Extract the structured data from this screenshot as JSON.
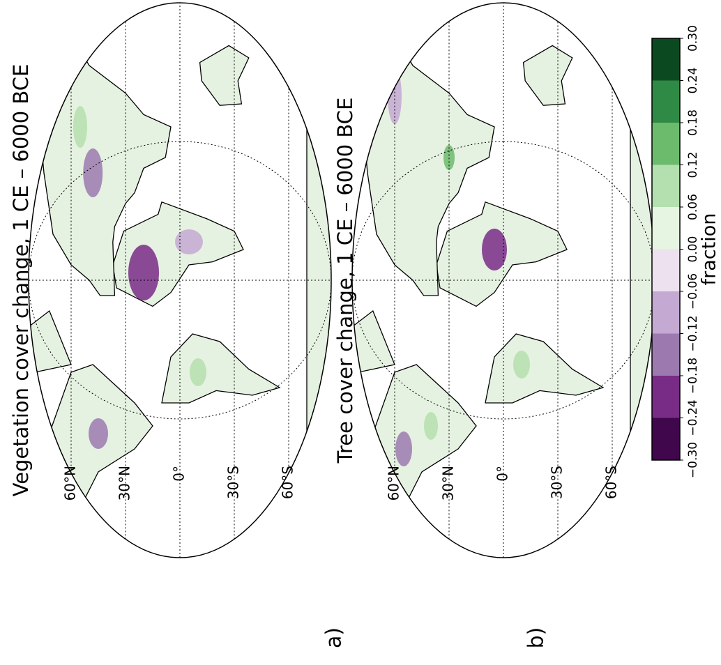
{
  "panels": [
    {
      "label": "a)",
      "title": "Vegetation cover change, 1 CE – 6000 BCE"
    },
    {
      "label": "b)",
      "title": "Tree cover change, 1 CE – 6000 BCE"
    }
  ],
  "lat_labels": [
    {
      "value": 60,
      "label": "60°N"
    },
    {
      "value": 30,
      "label": "30°N"
    },
    {
      "value": 0,
      "label": "0°"
    },
    {
      "value": -30,
      "label": "30°S"
    },
    {
      "value": -60,
      "label": "60°S"
    }
  ],
  "colorbar": {
    "label": "fraction",
    "ticks": [
      {
        "value": -0.3,
        "label": "−0.30"
      },
      {
        "value": -0.24,
        "label": "−0.24"
      },
      {
        "value": -0.18,
        "label": "−0.18"
      },
      {
        "value": -0.12,
        "label": "−0.12"
      },
      {
        "value": -0.06,
        "label": "−0.06"
      },
      {
        "value": 0,
        "label": "0.00"
      },
      {
        "value": 0.06,
        "label": "0.06"
      },
      {
        "value": 0.12,
        "label": "0.12"
      },
      {
        "value": 0.18,
        "label": "0.18"
      },
      {
        "value": 0.24,
        "label": "0.24"
      },
      {
        "value": 0.3,
        "label": "0.30"
      }
    ],
    "colors": [
      "#40074c",
      "#782c86",
      "#9c7ab0",
      "#c4a9d2",
      "#ede0ef",
      "#e6f4e2",
      "#b4dfae",
      "#6cbb6d",
      "#2e8a45",
      "#0b4a20"
    ]
  }
}
